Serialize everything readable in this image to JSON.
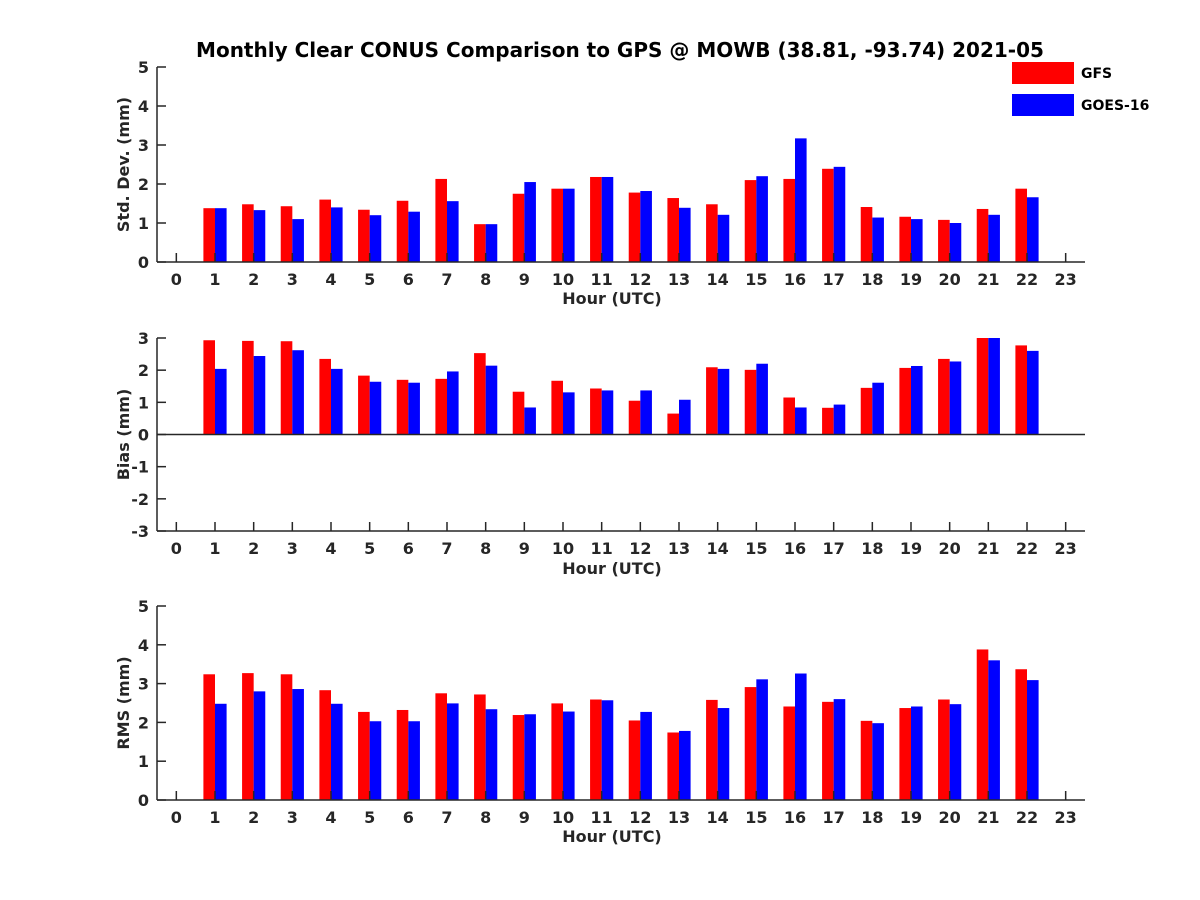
{
  "title": "Monthly Clear CONUS Comparison to GPS @ MOWB (38.81, -93.74) 2021-05",
  "legend": [
    {
      "name": "GFS",
      "color": "#ff0000"
    },
    {
      "name": "GOES-16",
      "color": "#0000ff"
    }
  ],
  "chart_data": [
    {
      "type": "bar",
      "ylabel": "Std. Dev. (mm)",
      "xlabel": "Hour (UTC)",
      "ylim": [
        0,
        5
      ],
      "yticks": [
        0,
        1,
        2,
        3,
        4,
        5
      ],
      "xlim": [
        -0.5,
        23.5
      ],
      "xticks": [
        0,
        1,
        2,
        3,
        4,
        5,
        6,
        7,
        8,
        9,
        10,
        11,
        12,
        13,
        14,
        15,
        16,
        17,
        18,
        19,
        20,
        21,
        22,
        23
      ],
      "x": [
        1,
        2,
        3,
        4,
        5,
        6,
        7,
        8,
        9,
        10,
        11,
        12,
        13,
        14,
        15,
        16,
        17,
        18,
        19,
        20,
        21,
        22
      ],
      "series": [
        {
          "name": "GFS",
          "color": "#ff0000",
          "values": [
            1.38,
            1.48,
            1.43,
            1.6,
            1.34,
            1.57,
            2.13,
            0.97,
            1.75,
            1.88,
            2.18,
            1.78,
            1.64,
            1.48,
            2.1,
            2.13,
            2.39,
            1.41,
            1.16,
            1.08,
            1.36,
            1.88
          ]
        },
        {
          "name": "GOES-16",
          "color": "#0000ff",
          "values": [
            1.38,
            1.33,
            1.1,
            1.4,
            1.2,
            1.29,
            1.56,
            0.97,
            2.05,
            1.88,
            2.18,
            1.82,
            1.39,
            1.21,
            2.2,
            3.17,
            2.44,
            1.14,
            1.1,
            1.0,
            1.21,
            1.66
          ]
        }
      ]
    },
    {
      "type": "bar",
      "ylabel": "Bias (mm)",
      "xlabel": "Hour (UTC)",
      "ylim": [
        -3,
        3
      ],
      "yticks": [
        -3,
        -2,
        -1,
        0,
        1,
        2,
        3
      ],
      "xlim": [
        -0.5,
        23.5
      ],
      "xticks": [
        0,
        1,
        2,
        3,
        4,
        5,
        6,
        7,
        8,
        9,
        10,
        11,
        12,
        13,
        14,
        15,
        16,
        17,
        18,
        19,
        20,
        21,
        22,
        23
      ],
      "x": [
        1,
        2,
        3,
        4,
        5,
        6,
        7,
        8,
        9,
        10,
        11,
        12,
        13,
        14,
        15,
        16,
        17,
        18,
        19,
        20,
        21,
        22
      ],
      "series": [
        {
          "name": "GFS",
          "color": "#ff0000",
          "values": [
            2.93,
            2.91,
            2.9,
            2.35,
            1.83,
            1.7,
            1.73,
            2.53,
            1.33,
            1.67,
            1.43,
            1.05,
            0.65,
            2.09,
            2.01,
            1.15,
            0.83,
            1.45,
            2.07,
            2.35,
            3.0,
            2.77
          ]
        },
        {
          "name": "GOES-16",
          "color": "#0000ff",
          "values": [
            2.04,
            2.44,
            2.62,
            2.04,
            1.64,
            1.61,
            1.96,
            2.14,
            0.84,
            1.31,
            1.37,
            1.37,
            1.08,
            2.04,
            2.2,
            0.84,
            0.93,
            1.61,
            2.13,
            2.27,
            3.0,
            2.6
          ]
        }
      ]
    },
    {
      "type": "bar",
      "ylabel": "RMS (mm)",
      "xlabel": "Hour (UTC)",
      "ylim": [
        0,
        5
      ],
      "yticks": [
        0,
        1,
        2,
        3,
        4,
        5
      ],
      "xlim": [
        -0.5,
        23.5
      ],
      "xticks": [
        0,
        1,
        2,
        3,
        4,
        5,
        6,
        7,
        8,
        9,
        10,
        11,
        12,
        13,
        14,
        15,
        16,
        17,
        18,
        19,
        20,
        21,
        22,
        23
      ],
      "x": [
        1,
        2,
        3,
        4,
        5,
        6,
        7,
        8,
        9,
        10,
        11,
        12,
        13,
        14,
        15,
        16,
        17,
        18,
        19,
        20,
        21,
        22
      ],
      "series": [
        {
          "name": "GFS",
          "color": "#ff0000",
          "values": [
            3.24,
            3.27,
            3.24,
            2.83,
            2.27,
            2.32,
            2.75,
            2.72,
            2.19,
            2.49,
            2.59,
            2.05,
            1.74,
            2.58,
            2.91,
            2.41,
            2.53,
            2.04,
            2.37,
            2.59,
            3.88,
            3.37
          ]
        },
        {
          "name": "GOES-16",
          "color": "#0000ff",
          "values": [
            2.48,
            2.8,
            2.86,
            2.48,
            2.03,
            2.03,
            2.49,
            2.34,
            2.21,
            2.28,
            2.57,
            2.27,
            1.78,
            2.37,
            3.11,
            3.26,
            2.6,
            1.98,
            2.41,
            2.47,
            3.6,
            3.09
          ]
        }
      ]
    }
  ]
}
